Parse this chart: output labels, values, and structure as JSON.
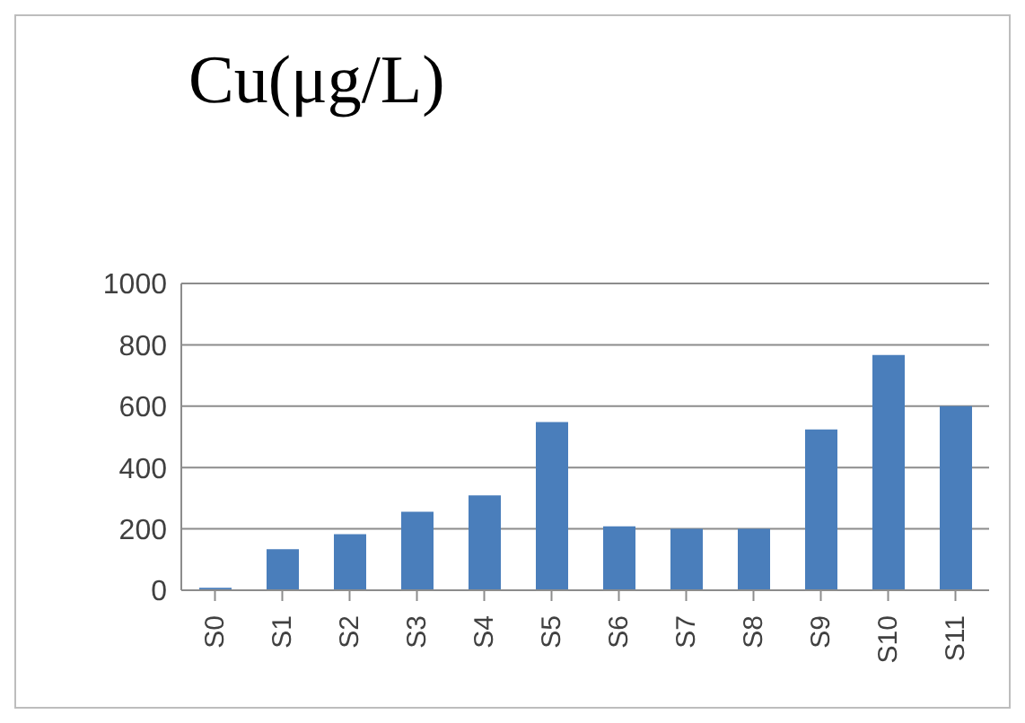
{
  "chart_data": {
    "type": "bar",
    "title": "Cu(μg/L)",
    "categories": [
      "S0",
      "S1",
      "S2",
      "S3",
      "S4",
      "S5",
      "S6",
      "S7",
      "S8",
      "S9",
      "S10",
      "S11"
    ],
    "values": [
      8,
      134,
      183,
      256,
      309,
      548,
      208,
      200,
      200,
      524,
      767,
      600
    ],
    "color": "#4a7ebb",
    "ylim": [
      0,
      1000
    ],
    "yticks": [
      0,
      200,
      400,
      600,
      800,
      1000
    ],
    "grid": "y",
    "legend": false
  }
}
